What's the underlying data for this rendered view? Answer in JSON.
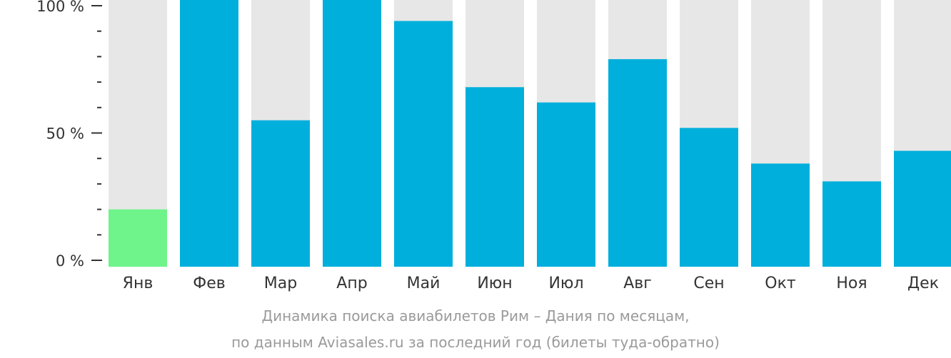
{
  "chart_data": {
    "type": "bar",
    "categories": [
      "Янв",
      "Фев",
      "Мар",
      "Апр",
      "Май",
      "Июн",
      "Июл",
      "Авг",
      "Сен",
      "Окт",
      "Ноя",
      "Дек"
    ],
    "values": [
      20,
      100,
      55,
      100,
      94,
      68,
      62,
      79,
      52,
      38,
      31,
      43
    ],
    "ylim": [
      0,
      100
    ],
    "y_ticks": [
      {
        "value": 0,
        "label": "0 %"
      },
      {
        "value": 50,
        "label": "50 %"
      },
      {
        "value": 100,
        "label": "100 %"
      }
    ],
    "minor_tick_step": 10,
    "grid": false,
    "legend": "none",
    "highlight_index": 0,
    "colors": {
      "bar": "#00afdc",
      "highlight": "#6ef48a",
      "background_bar": "#e7e7e7",
      "axis": "#333333"
    }
  },
  "caption": {
    "line1": "Динамика поиска авиабилетов Рим – Дания по месяцам,",
    "line2": "по данным Aviasales.ru за последний год (билеты туда-обратно)"
  }
}
